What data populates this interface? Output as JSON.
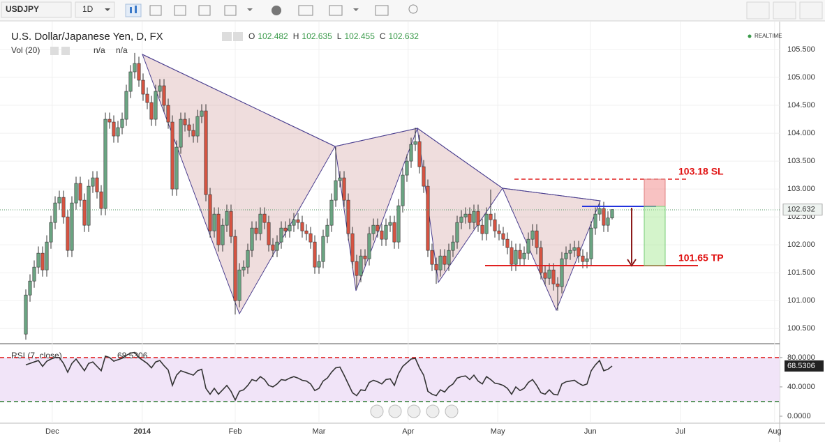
{
  "toolbar": {
    "symbol": "USDJPY",
    "interval": "1D"
  },
  "header": {
    "title": "U.S. Dollar/Japanese Yen, D, FX",
    "ohlc_labels": [
      "O",
      "H",
      "L",
      "C"
    ],
    "volume": "Vol (20)",
    "volume_values": [
      "n/a",
      "n/a"
    ],
    "status": "REALTIME"
  },
  "chart_data": [
    {
      "type": "candlestick",
      "up_color": "#6ba583",
      "down_color": "#d75442",
      "xlim": [
        -5,
        180
      ],
      "ylim": [
        100.24,
        105.95
      ],
      "xticks": [
        {
          "value": 6.3,
          "label": "Dec"
        },
        {
          "value": 27.8,
          "label": "2014"
        },
        {
          "value": 50,
          "label": "Feb"
        },
        {
          "value": 70,
          "label": "Mar"
        },
        {
          "value": 91.3,
          "label": "Apr"
        },
        {
          "value": 112.7,
          "label": "May"
        },
        {
          "value": 134.8,
          "label": "Jun"
        },
        {
          "value": 156.3,
          "label": "Jul"
        },
        {
          "value": 178.8,
          "label": "Aug"
        }
      ],
      "yticks": [
        {
          "value": 100.5,
          "label": "100.500"
        },
        {
          "value": 101,
          "label": "101.000"
        },
        {
          "value": 101.5,
          "label": "101.500"
        },
        {
          "value": 102,
          "label": "102.000"
        },
        {
          "value": 102.5,
          "label": "102.500"
        },
        {
          "value": 103,
          "label": "103.000"
        },
        {
          "value": 103.5,
          "label": "103.500"
        },
        {
          "value": 104,
          "label": "104.000"
        },
        {
          "value": 104.5,
          "label": "104.500"
        },
        {
          "value": 105,
          "label": "105.000"
        },
        {
          "value": 105.5,
          "label": "105.500"
        }
      ],
      "annotations": [
        "103.18  SL",
        "101.65 TP"
      ],
      "candles": [
        [
          100.4,
          101.2,
          100.3,
          101.1
        ],
        [
          101.1,
          101.47,
          100.98,
          101.35
        ],
        [
          101.35,
          101.72,
          101.23,
          101.6
        ],
        [
          101.6,
          101.97,
          101.48,
          101.85
        ],
        [
          101.85,
          101.97,
          101.43,
          101.55
        ],
        [
          101.55,
          102.17,
          101.43,
          102.05
        ],
        [
          102.05,
          102.52,
          101.93,
          102.4
        ],
        [
          102.4,
          102.87,
          102.28,
          102.75
        ],
        [
          102.75,
          102.97,
          102.63,
          102.85
        ],
        [
          102.85,
          102.97,
          102.38,
          102.5
        ],
        [
          102.5,
          102.62,
          101.78,
          101.9
        ],
        [
          101.9,
          102.87,
          101.78,
          102.75
        ],
        [
          102.75,
          103.22,
          102.63,
          103.1
        ],
        [
          103.1,
          103.22,
          102.68,
          102.8
        ],
        [
          102.8,
          102.92,
          102.23,
          102.35
        ],
        [
          102.35,
          103.17,
          102.23,
          103.05
        ],
        [
          103.05,
          103.32,
          102.93,
          103.2
        ],
        [
          103.2,
          103.32,
          102.83,
          102.95
        ],
        [
          102.95,
          103.07,
          102.53,
          102.65
        ],
        [
          102.65,
          104.37,
          102.53,
          104.25
        ],
        [
          104.25,
          104.37,
          104.08,
          104.2
        ],
        [
          104.2,
          104.32,
          103.83,
          103.95
        ],
        [
          103.95,
          104.22,
          103.83,
          104.1
        ],
        [
          104.1,
          104.37,
          103.98,
          104.25
        ],
        [
          104.25,
          104.87,
          104.13,
          104.75
        ],
        [
          104.75,
          105.22,
          104.63,
          105.1
        ],
        [
          105.1,
          105.44,
          104.98,
          105.25
        ],
        [
          105.25,
          105.37,
          104.83,
          104.95
        ],
        [
          104.95,
          105.07,
          104.58,
          104.7
        ],
        [
          104.7,
          104.82,
          104.43,
          104.55
        ],
        [
          104.55,
          104.67,
          104.13,
          104.25
        ],
        [
          104.25,
          104.87,
          104.13,
          104.75
        ],
        [
          104.75,
          104.97,
          104.63,
          104.85
        ],
        [
          104.85,
          104.97,
          104.38,
          104.5
        ],
        [
          104.5,
          104.62,
          104.08,
          104.2
        ],
        [
          104.2,
          104.32,
          102.88,
          103.0
        ],
        [
          103.0,
          103.87,
          102.88,
          103.75
        ],
        [
          103.75,
          104.37,
          103.63,
          104.25
        ],
        [
          104.25,
          104.37,
          104.03,
          104.15
        ],
        [
          104.15,
          104.27,
          103.93,
          104.05
        ],
        [
          104.05,
          104.17,
          103.83,
          103.95
        ],
        [
          103.95,
          104.42,
          103.83,
          104.3
        ],
        [
          104.3,
          104.52,
          104.18,
          104.4
        ],
        [
          104.4,
          104.52,
          102.78,
          102.9
        ],
        [
          102.9,
          103.02,
          102.13,
          102.25
        ],
        [
          102.25,
          102.67,
          102.13,
          102.55
        ],
        [
          102.55,
          102.67,
          101.88,
          102.0
        ],
        [
          102.0,
          102.47,
          101.88,
          102.35
        ],
        [
          102.35,
          102.72,
          102.23,
          102.6
        ],
        [
          102.6,
          102.72,
          102.03,
          102.15
        ],
        [
          102.15,
          102.27,
          100.75,
          101.0
        ],
        [
          101.0,
          101.67,
          100.88,
          101.55
        ],
        [
          101.55,
          101.72,
          101.43,
          101.6
        ],
        [
          101.6,
          102.02,
          101.48,
          101.9
        ],
        [
          101.9,
          102.42,
          101.78,
          102.3
        ],
        [
          102.3,
          102.42,
          102.08,
          102.2
        ],
        [
          102.2,
          102.67,
          102.08,
          102.55
        ],
        [
          102.55,
          102.67,
          102.28,
          102.4
        ],
        [
          102.4,
          102.52,
          101.88,
          102.0
        ],
        [
          102.0,
          102.12,
          101.78,
          101.9
        ],
        [
          101.9,
          102.17,
          101.78,
          102.05
        ],
        [
          102.05,
          102.42,
          101.93,
          102.3
        ],
        [
          102.3,
          102.42,
          102.13,
          102.25
        ],
        [
          102.25,
          102.47,
          102.13,
          102.35
        ],
        [
          102.35,
          102.57,
          102.23,
          102.45
        ],
        [
          102.45,
          102.57,
          102.28,
          102.4
        ],
        [
          102.4,
          102.52,
          102.13,
          102.25
        ],
        [
          102.25,
          102.37,
          102.08,
          102.2
        ],
        [
          102.2,
          102.32,
          101.93,
          102.05
        ],
        [
          102.05,
          102.17,
          101.48,
          101.6
        ],
        [
          101.6,
          101.82,
          101.48,
          101.7
        ],
        [
          101.7,
          102.27,
          101.58,
          102.15
        ],
        [
          102.15,
          102.47,
          102.03,
          102.35
        ],
        [
          102.35,
          102.92,
          102.23,
          102.8
        ],
        [
          102.8,
          103.75,
          102.68,
          103.15
        ],
        [
          103.15,
          103.32,
          103.03,
          103.2
        ],
        [
          103.2,
          103.32,
          102.68,
          102.8
        ],
        [
          102.8,
          102.92,
          102.08,
          102.2
        ],
        [
          102.2,
          102.32,
          101.58,
          101.7
        ],
        [
          101.7,
          101.82,
          101.2,
          101.45
        ],
        [
          101.45,
          101.92,
          101.33,
          101.8
        ],
        [
          101.8,
          101.92,
          101.63,
          101.75
        ],
        [
          101.75,
          102.32,
          101.63,
          102.2
        ],
        [
          102.2,
          102.47,
          102.08,
          102.35
        ],
        [
          102.35,
          102.47,
          102.13,
          102.25
        ],
        [
          102.25,
          102.37,
          101.98,
          102.1
        ],
        [
          102.1,
          102.47,
          101.98,
          102.35
        ],
        [
          102.35,
          102.52,
          102.23,
          102.4
        ],
        [
          102.4,
          102.52,
          101.93,
          102.05
        ],
        [
          102.05,
          102.82,
          101.93,
          102.7
        ],
        [
          102.7,
          103.37,
          102.58,
          103.25
        ],
        [
          103.25,
          103.62,
          103.13,
          103.5
        ],
        [
          103.5,
          103.92,
          103.38,
          103.8
        ],
        [
          103.8,
          104.1,
          103.68,
          103.85
        ],
        [
          103.85,
          103.97,
          103.28,
          103.4
        ],
        [
          103.4,
          103.52,
          102.93,
          103.05
        ],
        [
          103.05,
          103.17,
          101.78,
          101.9
        ],
        [
          101.9,
          102.02,
          101.53,
          101.65
        ],
        [
          101.65,
          101.77,
          101.3,
          101.55
        ],
        [
          101.55,
          101.92,
          101.43,
          101.8
        ],
        [
          101.8,
          101.92,
          101.53,
          101.65
        ],
        [
          101.65,
          102.02,
          101.53,
          101.9
        ],
        [
          101.9,
          102.17,
          101.78,
          102.05
        ],
        [
          102.05,
          102.52,
          101.93,
          102.4
        ],
        [
          102.4,
          102.62,
          102.28,
          102.5
        ],
        [
          102.5,
          102.67,
          102.38,
          102.55
        ],
        [
          102.55,
          102.67,
          102.28,
          102.4
        ],
        [
          102.4,
          102.72,
          102.28,
          102.6
        ],
        [
          102.6,
          102.72,
          102.23,
          102.35
        ],
        [
          102.35,
          102.47,
          102.08,
          102.2
        ],
        [
          102.2,
          102.67,
          102.08,
          102.55
        ],
        [
          102.55,
          102.99,
          102.33,
          102.45
        ],
        [
          102.45,
          102.57,
          102.13,
          102.25
        ],
        [
          102.25,
          102.37,
          102.08,
          102.2
        ],
        [
          102.2,
          102.32,
          101.98,
          102.1
        ],
        [
          102.1,
          102.22,
          101.83,
          101.95
        ],
        [
          101.95,
          102.07,
          101.53,
          101.65
        ],
        [
          101.65,
          102.02,
          101.53,
          101.9
        ],
        [
          101.9,
          102.02,
          101.63,
          101.75
        ],
        [
          101.75,
          101.97,
          101.63,
          101.85
        ],
        [
          101.85,
          102.22,
          101.73,
          102.1
        ],
        [
          102.1,
          102.37,
          101.98,
          102.25
        ],
        [
          102.25,
          102.37,
          101.83,
          101.95
        ],
        [
          101.95,
          102.07,
          101.38,
          101.5
        ],
        [
          101.5,
          101.62,
          101.28,
          101.4
        ],
        [
          101.4,
          101.67,
          101.28,
          101.55
        ],
        [
          101.55,
          101.67,
          101.18,
          101.3
        ],
        [
          101.3,
          101.42,
          100.82,
          101.25
        ],
        [
          101.25,
          101.87,
          101.13,
          101.75
        ],
        [
          101.75,
          101.97,
          101.63,
          101.85
        ],
        [
          101.85,
          102.02,
          101.73,
          101.9
        ],
        [
          101.9,
          102.07,
          101.78,
          101.95
        ],
        [
          101.95,
          102.07,
          101.68,
          101.8
        ],
        [
          101.8,
          101.92,
          101.58,
          101.7
        ],
        [
          101.7,
          101.87,
          101.58,
          101.75
        ],
        [
          101.75,
          102.42,
          101.63,
          102.3
        ],
        [
          102.3,
          102.67,
          102.18,
          102.55
        ],
        [
          102.55,
          102.77,
          102.43,
          102.65
        ],
        [
          102.65,
          102.77,
          102.23,
          102.35
        ],
        [
          102.35,
          102.6,
          102.23,
          102.48
        ],
        [
          102.482,
          102.635,
          102.455,
          102.632
        ]
      ]
    },
    {
      "type": "line",
      "name": "RSI (7, close)",
      "color": "#333333",
      "band_color": "#f1e4f8",
      "upper_color": "#e02020",
      "lower_color": "#2e7d32",
      "xlim": [
        -5,
        180
      ],
      "ylim": [
        -9.5,
        97
      ],
      "bands": [
        20,
        80
      ],
      "yticks": [
        {
          "value": 0,
          "label": "0.0000"
        },
        {
          "value": 40,
          "label": "40.0000"
        },
        {
          "value": 80,
          "label": "80.0000"
        }
      ],
      "values": [
        70,
        72,
        74,
        76,
        68,
        75,
        78,
        80,
        80,
        72,
        60,
        72,
        78,
        70,
        62,
        72,
        74,
        68,
        62,
        82,
        80,
        75,
        77,
        79,
        83,
        86,
        87,
        80,
        76,
        72,
        66,
        74,
        76,
        69,
        63,
        42,
        56,
        62,
        60,
        58,
        56,
        62,
        64,
        38,
        30,
        38,
        30,
        36,
        42,
        34,
        22,
        34,
        36,
        42,
        50,
        48,
        54,
        50,
        42,
        40,
        44,
        50,
        49,
        52,
        54,
        52,
        49,
        48,
        44,
        35,
        38,
        48,
        52,
        60,
        66,
        67,
        56,
        44,
        32,
        28,
        36,
        35,
        46,
        49,
        47,
        44,
        50,
        51,
        42,
        58,
        68,
        73,
        78,
        79,
        66,
        56,
        34,
        30,
        28,
        36,
        33,
        40,
        44,
        52,
        54,
        55,
        50,
        56,
        48,
        44,
        54,
        50,
        45,
        44,
        42,
        38,
        30,
        40,
        35,
        38,
        46,
        50,
        42,
        32,
        30,
        36,
        30,
        29,
        44,
        47,
        48,
        49,
        45,
        42,
        44,
        62,
        70,
        76,
        62,
        64,
        68.5306
      ]
    }
  ]
}
